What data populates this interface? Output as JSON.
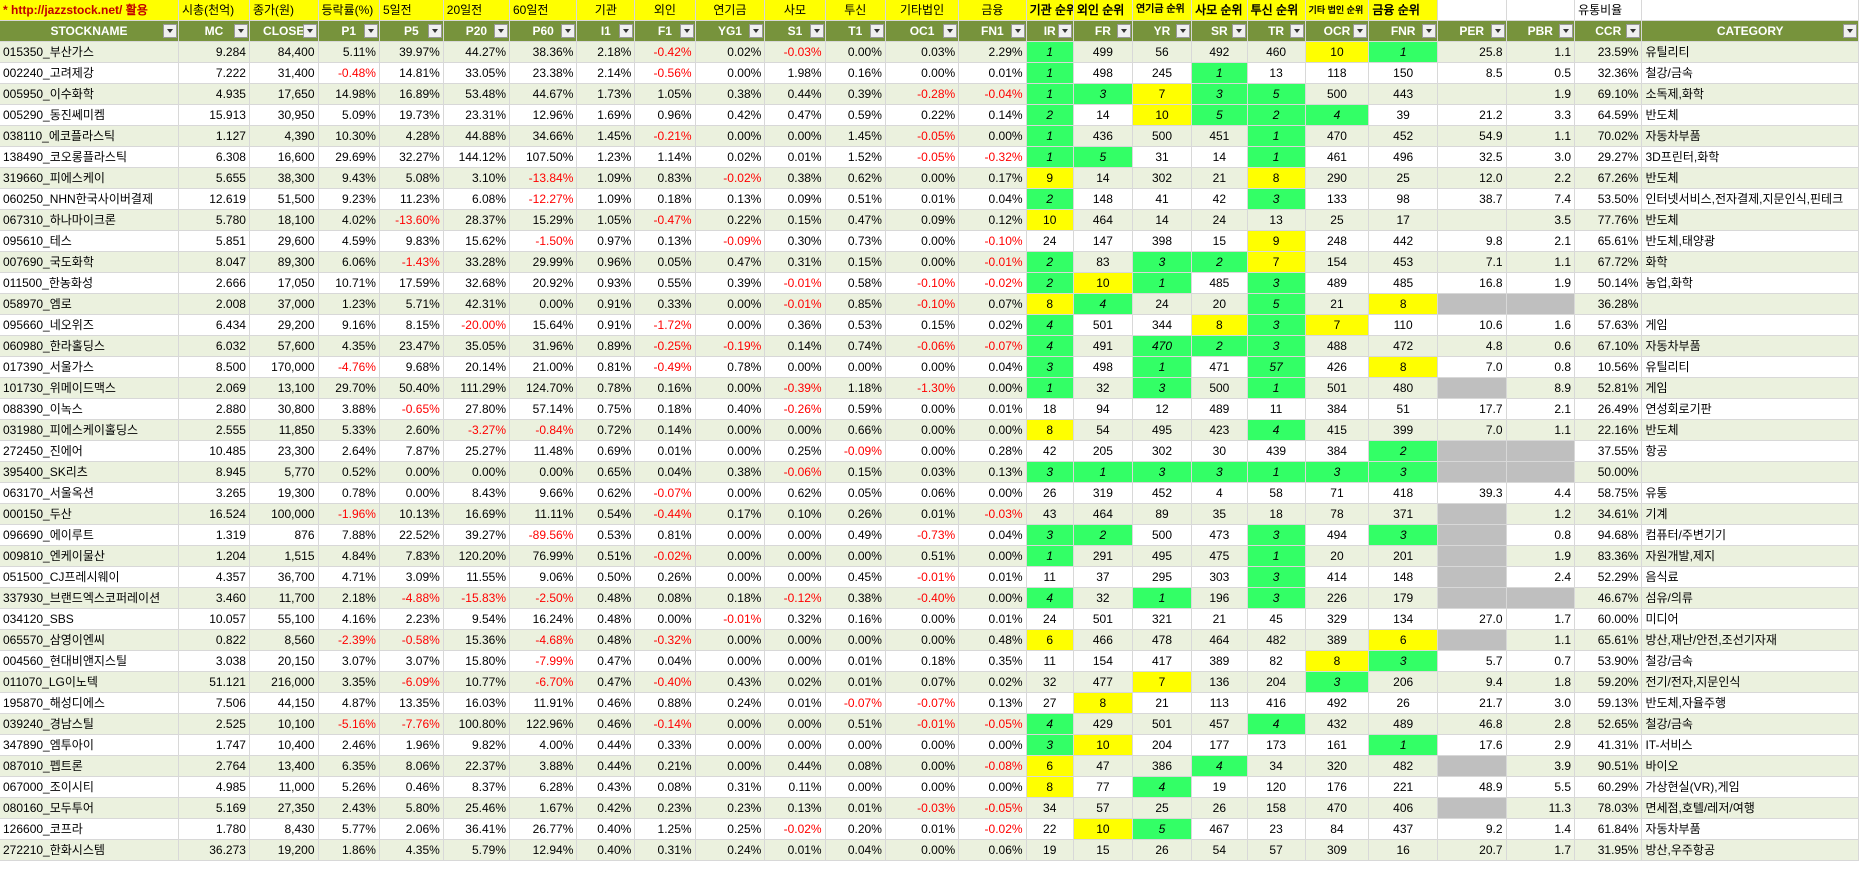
{
  "header_top": {
    "url_label": "* http://jazzstock.net/ 활용",
    "cells": [
      "시총(천억)",
      "종가(원)",
      "등락률(%)",
      "5일전",
      "20일전",
      "60일전",
      "기관",
      "외인",
      "연기금",
      "사모",
      "투신",
      "기타법인",
      "금융",
      "기관 순위",
      "외인 순위",
      "연기금 순위",
      "사모 순위",
      "투신 순위",
      "기타 법인 순위",
      "금융 순위",
      "",
      "",
      "유통비율",
      ""
    ]
  },
  "columns": [
    "STOCKNAME",
    "MC",
    "CLOSE",
    "P1",
    "P5",
    "P20",
    "P60",
    "I1",
    "F1",
    "YG1",
    "S1",
    "T1",
    "OC1",
    "FN1",
    "IR",
    "FR",
    "YR",
    "SR",
    "TR",
    "OCR",
    "FNR",
    "PER",
    "PBR",
    "CCR",
    "CATEGORY"
  ],
  "colors": {
    "header_bg": "#77933c",
    "top_bg": "#ffff00",
    "rank_green": "#33ff66",
    "rank_yellow": "#ffff00",
    "negative": "#ff0000",
    "zebra": "#ebf1de"
  },
  "rows": [
    [
      "015350_부산가스",
      "9.284",
      "84,400",
      "5.11%",
      "39.97%",
      "44.27%",
      "38.36%",
      "2.18%",
      "-0.42%",
      "0.02%",
      "-0.03%",
      "0.00%",
      "0.03%",
      "2.29%",
      "1",
      "499",
      "56",
      "492",
      "460",
      "10",
      "1",
      "25.8",
      "1.1",
      "23.59%",
      "유틸리티"
    ],
    [
      "002240_고려제강",
      "7.222",
      "31,400",
      "-0.48%",
      "14.81%",
      "33.05%",
      "23.38%",
      "2.14%",
      "-0.56%",
      "0.00%",
      "1.98%",
      "0.16%",
      "0.00%",
      "0.01%",
      "1",
      "498",
      "245",
      "1",
      "13",
      "118",
      "150",
      "8.5",
      "0.5",
      "32.36%",
      "철강/금속"
    ],
    [
      "005950_이수화학",
      "4.935",
      "17,650",
      "14.98%",
      "16.89%",
      "53.48%",
      "44.67%",
      "1.73%",
      "1.05%",
      "0.38%",
      "0.44%",
      "0.39%",
      "-0.28%",
      "-0.04%",
      "1",
      "3",
      "7",
      "3",
      "5",
      "500",
      "443",
      "",
      "1.9",
      "69.10%",
      "소독제,화학"
    ],
    [
      "005290_동진쎄미켐",
      "15.913",
      "30,950",
      "5.09%",
      "19.73%",
      "23.31%",
      "12.96%",
      "1.69%",
      "0.96%",
      "0.42%",
      "0.47%",
      "0.59%",
      "0.22%",
      "0.14%",
      "2",
      "14",
      "10",
      "5",
      "2",
      "4",
      "39",
      "21.2",
      "3.3",
      "64.59%",
      "반도체"
    ],
    [
      "038110_에코플라스틱",
      "1.127",
      "4,390",
      "10.30%",
      "4.28%",
      "44.88%",
      "34.66%",
      "1.45%",
      "-0.21%",
      "0.00%",
      "0.00%",
      "1.45%",
      "-0.05%",
      "0.00%",
      "1",
      "436",
      "500",
      "451",
      "1",
      "470",
      "452",
      "54.9",
      "1.1",
      "70.02%",
      "자동차부품"
    ],
    [
      "138490_코오롱플라스틱",
      "6.308",
      "16,600",
      "29.69%",
      "32.27%",
      "144.12%",
      "107.50%",
      "1.23%",
      "1.14%",
      "0.02%",
      "0.01%",
      "1.52%",
      "-0.05%",
      "-0.32%",
      "1",
      "5",
      "31",
      "14",
      "1",
      "461",
      "496",
      "32.5",
      "3.0",
      "29.27%",
      "3D프린터,화학"
    ],
    [
      "319660_피에스케이",
      "5.655",
      "38,300",
      "9.43%",
      "5.08%",
      "3.10%",
      "-13.84%",
      "1.09%",
      "0.83%",
      "-0.02%",
      "0.38%",
      "0.62%",
      "0.00%",
      "0.17%",
      "9",
      "14",
      "302",
      "21",
      "8",
      "290",
      "25",
      "12.0",
      "2.2",
      "67.26%",
      "반도체"
    ],
    [
      "060250_NHN한국사이버결제",
      "12.619",
      "51,500",
      "9.23%",
      "11.23%",
      "6.08%",
      "-12.27%",
      "1.09%",
      "0.18%",
      "0.13%",
      "0.09%",
      "0.51%",
      "0.01%",
      "0.04%",
      "2",
      "148",
      "41",
      "42",
      "3",
      "133",
      "98",
      "38.7",
      "7.4",
      "53.50%",
      "인터넷서비스,전자결제,지문인식,핀테크"
    ],
    [
      "067310_하나마이크론",
      "5.780",
      "18,100",
      "4.02%",
      "-13.60%",
      "28.37%",
      "15.29%",
      "1.05%",
      "-0.47%",
      "0.22%",
      "0.15%",
      "0.47%",
      "0.09%",
      "0.12%",
      "10",
      "464",
      "14",
      "24",
      "13",
      "25",
      "17",
      "",
      "3.5",
      "77.76%",
      "반도체"
    ],
    [
      "095610_테스",
      "5.851",
      "29,600",
      "4.59%",
      "9.83%",
      "15.62%",
      "-1.50%",
      "0.97%",
      "0.13%",
      "-0.09%",
      "0.30%",
      "0.73%",
      "0.00%",
      "-0.10%",
      "24",
      "147",
      "398",
      "15",
      "9",
      "248",
      "442",
      "9.8",
      "2.1",
      "65.61%",
      "반도체,태양광"
    ],
    [
      "007690_국도화학",
      "8.047",
      "89,300",
      "6.06%",
      "-1.43%",
      "33.28%",
      "29.99%",
      "0.96%",
      "0.05%",
      "0.47%",
      "0.31%",
      "0.15%",
      "0.00%",
      "-0.01%",
      "2",
      "83",
      "3",
      "2",
      "7",
      "154",
      "453",
      "7.1",
      "1.1",
      "67.72%",
      "화학"
    ],
    [
      "011500_한농화성",
      "2.666",
      "17,050",
      "10.71%",
      "17.59%",
      "32.68%",
      "20.92%",
      "0.93%",
      "0.55%",
      "0.39%",
      "-0.01%",
      "0.58%",
      "-0.10%",
      "-0.02%",
      "2",
      "10",
      "1",
      "485",
      "3",
      "489",
      "485",
      "16.8",
      "1.9",
      "50.14%",
      "농업,화학"
    ],
    [
      "058970_엠로",
      "2.008",
      "37,000",
      "1.23%",
      "5.71%",
      "42.31%",
      "0.00%",
      "0.91%",
      "0.33%",
      "0.00%",
      "-0.01%",
      "0.85%",
      "-0.10%",
      "0.07%",
      "8",
      "4",
      "24",
      "20",
      "5",
      "21",
      "8",
      "",
      "",
      "36.28%",
      ""
    ],
    [
      "095660_네오위즈",
      "6.434",
      "29,200",
      "9.16%",
      "8.15%",
      "-20.00%",
      "15.64%",
      "0.91%",
      "-1.72%",
      "0.00%",
      "0.36%",
      "0.53%",
      "0.15%",
      "0.02%",
      "4",
      "501",
      "344",
      "8",
      "3",
      "7",
      "110",
      "10.6",
      "1.6",
      "57.63%",
      "게임"
    ],
    [
      "060980_한라홀딩스",
      "6.032",
      "57,600",
      "4.35%",
      "23.47%",
      "35.05%",
      "31.96%",
      "0.89%",
      "-0.25%",
      "-0.19%",
      "0.14%",
      "0.74%",
      "-0.06%",
      "-0.07%",
      "4",
      "491",
      "470",
      "2",
      "3",
      "488",
      "472",
      "4.8",
      "0.6",
      "67.10%",
      "자동차부품"
    ],
    [
      "017390_서울가스",
      "8.500",
      "170,000",
      "-4.76%",
      "9.68%",
      "20.14%",
      "21.00%",
      "0.81%",
      "-0.49%",
      "0.78%",
      "0.00%",
      "0.00%",
      "0.00%",
      "0.04%",
      "3",
      "498",
      "1",
      "471",
      "57",
      "426",
      "8",
      "7.0",
      "0.8",
      "10.56%",
      "유틸리티"
    ],
    [
      "101730_위메이드맥스",
      "2.069",
      "13,100",
      "29.70%",
      "50.40%",
      "111.29%",
      "124.70%",
      "0.78%",
      "0.16%",
      "0.00%",
      "-0.39%",
      "1.18%",
      "-1.30%",
      "0.00%",
      "1",
      "32",
      "3",
      "500",
      "1",
      "501",
      "480",
      "",
      "8.9",
      "52.81%",
      "게임"
    ],
    [
      "088390_이녹스",
      "2.880",
      "30,800",
      "3.88%",
      "-0.65%",
      "27.80%",
      "57.14%",
      "0.75%",
      "0.18%",
      "0.40%",
      "-0.26%",
      "0.59%",
      "0.00%",
      "0.01%",
      "18",
      "94",
      "12",
      "489",
      "11",
      "384",
      "51",
      "17.7",
      "2.1",
      "26.49%",
      "연성회로기판"
    ],
    [
      "031980_피에스케이홀딩스",
      "2.555",
      "11,850",
      "5.33%",
      "2.60%",
      "-3.27%",
      "-0.84%",
      "0.72%",
      "0.14%",
      "0.00%",
      "0.00%",
      "0.66%",
      "0.00%",
      "0.00%",
      "8",
      "54",
      "495",
      "423",
      "4",
      "415",
      "399",
      "7.0",
      "1.1",
      "22.16%",
      "반도체"
    ],
    [
      "272450_진에어",
      "10.485",
      "23,300",
      "2.64%",
      "7.87%",
      "25.27%",
      "11.48%",
      "0.69%",
      "0.01%",
      "0.00%",
      "0.25%",
      "-0.09%",
      "0.00%",
      "0.28%",
      "42",
      "205",
      "302",
      "30",
      "439",
      "384",
      "2",
      "",
      "",
      "37.55%",
      "항공"
    ],
    [
      "395400_SK리츠",
      "8.945",
      "5,770",
      "0.52%",
      "0.00%",
      "0.00%",
      "0.00%",
      "0.65%",
      "0.04%",
      "0.38%",
      "-0.06%",
      "0.15%",
      "0.03%",
      "0.13%",
      "3",
      "1",
      "3",
      "3",
      "1",
      "3",
      "3",
      "",
      "",
      "50.00%",
      ""
    ],
    [
      "063170_서울옥션",
      "3.265",
      "19,300",
      "0.78%",
      "0.00%",
      "8.43%",
      "9.66%",
      "0.62%",
      "-0.07%",
      "0.00%",
      "0.62%",
      "0.05%",
      "0.06%",
      "0.00%",
      "26",
      "319",
      "452",
      "4",
      "58",
      "71",
      "418",
      "39.3",
      "4.4",
      "58.75%",
      "유통"
    ],
    [
      "000150_두산",
      "16.524",
      "100,000",
      "-1.96%",
      "10.13%",
      "16.69%",
      "11.11%",
      "0.54%",
      "-0.44%",
      "0.17%",
      "0.10%",
      "0.26%",
      "0.01%",
      "-0.03%",
      "43",
      "464",
      "89",
      "35",
      "18",
      "78",
      "371",
      "",
      "1.2",
      "34.61%",
      "기계"
    ],
    [
      "096690_에이루트",
      "1.319",
      "876",
      "7.88%",
      "22.52%",
      "39.27%",
      "-89.56%",
      "0.53%",
      "0.81%",
      "0.00%",
      "0.00%",
      "0.49%",
      "-0.73%",
      "0.04%",
      "3",
      "2",
      "500",
      "473",
      "3",
      "494",
      "3",
      "",
      "0.8",
      "94.68%",
      "컴퓨터/주변기기"
    ],
    [
      "009810_엔케이물산",
      "1.204",
      "1,515",
      "4.84%",
      "7.83%",
      "120.20%",
      "76.99%",
      "0.51%",
      "-0.02%",
      "0.00%",
      "0.00%",
      "0.00%",
      "0.51%",
      "0.00%",
      "1",
      "291",
      "495",
      "475",
      "1",
      "20",
      "201",
      "",
      "1.9",
      "83.36%",
      "자원개발,제지"
    ],
    [
      "051500_CJ프레시웨이",
      "4.357",
      "36,700",
      "4.71%",
      "3.09%",
      "11.55%",
      "9.06%",
      "0.50%",
      "0.26%",
      "0.00%",
      "0.00%",
      "0.45%",
      "-0.01%",
      "0.01%",
      "11",
      "37",
      "295",
      "303",
      "3",
      "414",
      "148",
      "",
      "2.4",
      "52.29%",
      "음식료"
    ],
    [
      "337930_브랜드엑스코퍼레이션",
      "3.460",
      "11,700",
      "2.18%",
      "-4.88%",
      "-15.83%",
      "-2.50%",
      "0.48%",
      "0.08%",
      "0.18%",
      "-0.12%",
      "0.38%",
      "-0.40%",
      "0.00%",
      "4",
      "32",
      "1",
      "196",
      "3",
      "226",
      "179",
      "",
      "",
      "46.67%",
      "섬유/의류"
    ],
    [
      "034120_SBS",
      "10.057",
      "55,100",
      "4.16%",
      "2.23%",
      "9.54%",
      "16.24%",
      "0.48%",
      "0.00%",
      "-0.01%",
      "0.32%",
      "0.16%",
      "0.00%",
      "0.01%",
      "24",
      "501",
      "321",
      "21",
      "45",
      "329",
      "134",
      "27.0",
      "1.7",
      "60.00%",
      "미디어"
    ],
    [
      "065570_삼영이엔씨",
      "0.822",
      "8,560",
      "-2.39%",
      "-0.58%",
      "15.36%",
      "-4.68%",
      "0.48%",
      "-0.32%",
      "0.00%",
      "0.00%",
      "0.00%",
      "0.00%",
      "0.48%",
      "6",
      "466",
      "478",
      "464",
      "482",
      "389",
      "6",
      "",
      "1.1",
      "65.61%",
      "방산,재난/안전,조선기자재"
    ],
    [
      "004560_현대비앤지스틸",
      "3.038",
      "20,150",
      "3.07%",
      "3.07%",
      "15.80%",
      "-7.99%",
      "0.47%",
      "0.04%",
      "0.00%",
      "0.00%",
      "0.01%",
      "0.18%",
      "0.35%",
      "11",
      "154",
      "417",
      "389",
      "82",
      "8",
      "3",
      "5.7",
      "0.7",
      "53.90%",
      "철강/금속"
    ],
    [
      "011070_LG이노텍",
      "51.121",
      "216,000",
      "3.35%",
      "-6.09%",
      "10.77%",
      "-6.70%",
      "0.47%",
      "-0.40%",
      "0.43%",
      "0.02%",
      "0.01%",
      "0.07%",
      "0.02%",
      "32",
      "477",
      "7",
      "136",
      "204",
      "3",
      "206",
      "9.4",
      "1.8",
      "59.20%",
      "전기/전자,지문인식"
    ],
    [
      "195870_해성디에스",
      "7.506",
      "44,150",
      "4.87%",
      "13.35%",
      "16.03%",
      "11.91%",
      "0.46%",
      "0.88%",
      "0.24%",
      "0.01%",
      "-0.07%",
      "-0.07%",
      "0.13%",
      "27",
      "8",
      "21",
      "113",
      "416",
      "492",
      "26",
      "21.7",
      "3.0",
      "59.13%",
      "반도체,자율주행"
    ],
    [
      "039240_경남스틸",
      "2.525",
      "10,100",
      "-5.16%",
      "-7.76%",
      "100.80%",
      "122.96%",
      "0.46%",
      "-0.14%",
      "0.00%",
      "0.00%",
      "0.51%",
      "-0.01%",
      "-0.05%",
      "4",
      "429",
      "501",
      "457",
      "4",
      "432",
      "489",
      "46.8",
      "2.8",
      "52.65%",
      "철강/금속"
    ],
    [
      "347890_엠투아이",
      "1.747",
      "10,400",
      "2.46%",
      "1.96%",
      "9.82%",
      "4.00%",
      "0.44%",
      "0.33%",
      "0.00%",
      "0.00%",
      "0.00%",
      "0.00%",
      "0.00%",
      "3",
      "10",
      "204",
      "177",
      "173",
      "161",
      "1",
      "17.6",
      "2.9",
      "41.31%",
      "IT-서비스"
    ],
    [
      "087010_펩트론",
      "2.764",
      "13,400",
      "6.35%",
      "8.06%",
      "22.37%",
      "3.88%",
      "0.44%",
      "0.21%",
      "0.00%",
      "0.44%",
      "0.08%",
      "0.00%",
      "-0.08%",
      "6",
      "47",
      "386",
      "4",
      "34",
      "320",
      "482",
      "",
      "3.9",
      "90.51%",
      "바이오"
    ],
    [
      "067000_조이시티",
      "4.985",
      "11,000",
      "5.26%",
      "0.46%",
      "8.37%",
      "6.28%",
      "0.43%",
      "0.08%",
      "0.31%",
      "0.11%",
      "0.00%",
      "0.00%",
      "0.00%",
      "8",
      "77",
      "4",
      "19",
      "120",
      "176",
      "221",
      "48.9",
      "5.5",
      "60.29%",
      "가상현실(VR),게임"
    ],
    [
      "080160_모두투어",
      "5.169",
      "27,350",
      "2.43%",
      "5.80%",
      "25.46%",
      "1.67%",
      "0.42%",
      "0.23%",
      "0.23%",
      "0.13%",
      "0.01%",
      "-0.03%",
      "-0.05%",
      "34",
      "57",
      "25",
      "26",
      "158",
      "470",
      "406",
      "",
      "11.3",
      "78.03%",
      "면세점,호텔/레저/여행"
    ],
    [
      "126600_코프라",
      "1.780",
      "8,430",
      "5.77%",
      "2.06%",
      "36.41%",
      "26.77%",
      "0.40%",
      "1.25%",
      "0.25%",
      "-0.02%",
      "0.20%",
      "0.01%",
      "-0.02%",
      "22",
      "10",
      "5",
      "467",
      "23",
      "84",
      "437",
      "9.2",
      "1.4",
      "61.84%",
      "자동차부품"
    ],
    [
      "272210_한화시스템",
      "36.273",
      "19,200",
      "1.86%",
      "4.35%",
      "5.79%",
      "12.94%",
      "0.40%",
      "0.31%",
      "0.24%",
      "0.01%",
      "0.04%",
      "0.00%",
      "0.06%",
      "19",
      "15",
      "26",
      "54",
      "57",
      "309",
      "16",
      "20.7",
      "1.7",
      "31.95%",
      "방산,우주항공"
    ]
  ],
  "rank_highlights": [
    {
      "g": [
        14,
        20
      ],
      "y": [
        19
      ]
    },
    {
      "g": [
        14,
        17
      ]
    },
    {
      "g": [
        14,
        15,
        17,
        18
      ],
      "y": [
        16
      ]
    },
    {
      "g": [
        14,
        17,
        18,
        19
      ],
      "y": [
        16
      ]
    },
    {
      "g": [
        14,
        18
      ]
    },
    {
      "g": [
        14,
        15,
        18
      ]
    },
    {
      "y": [
        14,
        18
      ]
    },
    {
      "g": [
        14,
        18
      ]
    },
    {
      "y": [
        14
      ]
    },
    {
      "y": [
        18
      ]
    },
    {
      "g": [
        14,
        16,
        17
      ],
      "y": [
        18
      ]
    },
    {
      "g": [
        14,
        16,
        18
      ],
      "y": [
        15
      ]
    },
    {
      "y": [
        14,
        20
      ],
      "g": [
        15,
        18
      ],
      "gr": [
        21,
        22
      ]
    },
    {
      "g": [
        14,
        18
      ],
      "y": [
        17,
        19
      ]
    },
    {
      "g": [
        14,
        16,
        17,
        18
      ]
    },
    {
      "g": [
        14,
        16,
        18
      ],
      "y": [
        20
      ]
    },
    {
      "g": [
        14,
        16,
        18
      ],
      "gr": [
        21
      ]
    },
    {},
    {
      "y": [
        14
      ],
      "g": [
        18
      ]
    },
    {
      "g": [
        20
      ],
      "gr": [
        21,
        22
      ]
    },
    {
      "g": [
        14,
        15,
        16,
        17,
        18,
        19,
        20
      ],
      "gr": [
        21,
        22
      ]
    },
    {},
    {
      "gr": [
        21
      ]
    },
    {
      "g": [
        14,
        15,
        18,
        20
      ],
      "gr": [
        21
      ]
    },
    {
      "g": [
        14,
        18
      ],
      "gr": [
        21
      ]
    },
    {
      "g": [
        18
      ],
      "gr": [
        21
      ]
    },
    {
      "g": [
        14,
        16,
        18
      ],
      "gr": [
        21,
        22
      ]
    },
    {},
    {
      "y": [
        14,
        20
      ],
      "gr": [
        21
      ]
    },
    {
      "y": [
        19
      ],
      "g": [
        20
      ]
    },
    {
      "y": [
        16
      ],
      "g": [
        19
      ]
    },
    {
      "y": [
        15
      ]
    },
    {
      "g": [
        14,
        18
      ]
    },
    {
      "g": [
        14,
        20
      ],
      "y": [
        15
      ]
    },
    {
      "y": [
        14
      ],
      "g": [
        17
      ],
      "gr": [
        21
      ]
    },
    {
      "y": [
        14
      ],
      "g": [
        16
      ]
    },
    {
      "gr": [
        21
      ]
    },
    {
      "y": [
        15
      ],
      "g": [
        16
      ]
    },
    {}
  ]
}
